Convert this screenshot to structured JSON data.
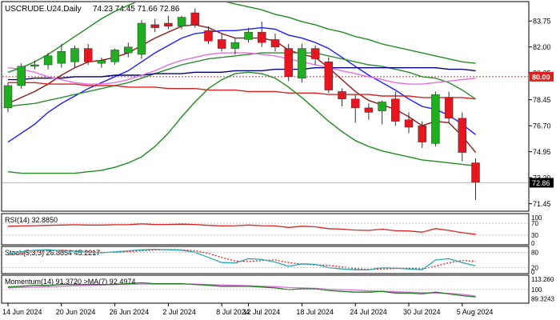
{
  "chart_data": {
    "type": "candlestick",
    "title": "USCRUDE.U24,Daily",
    "ohlc_header": "74.23 74.45 71.66 72.86",
    "last_price": "72.86",
    "level_line": "80.00",
    "price_ticks": [
      "83.75",
      "82.00",
      "80.25",
      "78.45",
      "76.70",
      "74.95",
      "73.20",
      "71.45"
    ],
    "price_range": [
      71.0,
      85.0
    ],
    "date_ticks": [
      "14 Jun 2024",
      "20 Jun 2024",
      "26 Jun 2024",
      "2 Jul 2024",
      "8 Jul 2024",
      "12 Jul 2024",
      "18 Jul 2024",
      "24 Jul 2024",
      "30 Jul 2024",
      "5 Aug 2024"
    ],
    "candles": [
      {
        "o": 77.9,
        "h": 79.6,
        "l": 77.6,
        "c": 79.4
      },
      {
        "o": 79.4,
        "h": 80.9,
        "l": 79.2,
        "c": 80.7
      },
      {
        "o": 80.7,
        "h": 81.1,
        "l": 80.5,
        "c": 80.8
      },
      {
        "o": 80.8,
        "h": 81.6,
        "l": 80.5,
        "c": 81.4
      },
      {
        "o": 80.9,
        "h": 82.2,
        "l": 80.6,
        "c": 81.7
      },
      {
        "o": 81.0,
        "h": 82.1,
        "l": 80.6,
        "c": 81.9
      },
      {
        "o": 81.9,
        "h": 82.2,
        "l": 80.8,
        "c": 81.0
      },
      {
        "o": 80.9,
        "h": 81.3,
        "l": 80.6,
        "c": 81.1
      },
      {
        "o": 81.0,
        "h": 81.9,
        "l": 80.8,
        "c": 81.8
      },
      {
        "o": 81.6,
        "h": 82.3,
        "l": 81.3,
        "c": 82.0
      },
      {
        "o": 81.5,
        "h": 83.8,
        "l": 81.2,
        "c": 83.6
      },
      {
        "o": 83.5,
        "h": 83.9,
        "l": 83.0,
        "c": 83.3
      },
      {
        "o": 83.6,
        "h": 84.1,
        "l": 83.2,
        "c": 83.4
      },
      {
        "o": 83.4,
        "h": 84.1,
        "l": 83.2,
        "c": 84.0
      },
      {
        "o": 84.3,
        "h": 84.6,
        "l": 83.3,
        "c": 83.5
      },
      {
        "o": 83.1,
        "h": 83.4,
        "l": 82.2,
        "c": 82.4
      },
      {
        "o": 82.5,
        "h": 82.9,
        "l": 81.7,
        "c": 81.9
      },
      {
        "o": 81.9,
        "h": 82.6,
        "l": 81.5,
        "c": 82.3
      },
      {
        "o": 82.5,
        "h": 83.3,
        "l": 82.3,
        "c": 83.0
      },
      {
        "o": 83.0,
        "h": 83.7,
        "l": 82.0,
        "c": 82.3
      },
      {
        "o": 82.5,
        "h": 82.9,
        "l": 81.7,
        "c": 82.0
      },
      {
        "o": 81.9,
        "h": 82.2,
        "l": 79.7,
        "c": 80.0
      },
      {
        "o": 79.9,
        "h": 82.2,
        "l": 79.6,
        "c": 81.9
      },
      {
        "o": 81.9,
        "h": 82.1,
        "l": 80.8,
        "c": 81.2
      },
      {
        "o": 81.0,
        "h": 81.3,
        "l": 78.9,
        "c": 79.1
      },
      {
        "o": 79.0,
        "h": 79.2,
        "l": 78.0,
        "c": 78.5
      },
      {
        "o": 78.5,
        "h": 78.8,
        "l": 76.9,
        "c": 77.9
      },
      {
        "o": 77.9,
        "h": 78.2,
        "l": 77.1,
        "c": 77.6
      },
      {
        "o": 77.7,
        "h": 78.4,
        "l": 76.8,
        "c": 78.3
      },
      {
        "o": 78.5,
        "h": 79.0,
        "l": 76.7,
        "c": 77.0
      },
      {
        "o": 77.1,
        "h": 77.6,
        "l": 76.2,
        "c": 76.6
      },
      {
        "o": 76.7,
        "h": 77.0,
        "l": 75.2,
        "c": 75.6
      },
      {
        "o": 75.5,
        "h": 79.0,
        "l": 75.3,
        "c": 78.8
      },
      {
        "o": 78.6,
        "h": 79.0,
        "l": 76.9,
        "c": 77.2
      },
      {
        "o": 77.2,
        "h": 77.6,
        "l": 74.3,
        "c": 74.9
      },
      {
        "o": 74.2,
        "h": 74.5,
        "l": 71.7,
        "c": 72.9
      }
    ],
    "overlays": [
      {
        "color": "#1a1aff",
        "values": [
          75.6,
          76.2,
          76.8,
          77.6,
          78.2,
          78.7,
          79.2,
          79.6,
          80.0,
          80.4,
          81.0,
          81.6,
          82.1,
          82.6,
          82.9,
          83.0,
          83.1,
          83.1,
          83.2,
          83.3,
          83.2,
          82.8,
          82.6,
          82.3,
          81.9,
          81.3,
          80.7,
          80.1,
          79.6,
          79.1,
          78.5,
          78.0,
          77.8,
          77.4,
          76.8,
          76.1
        ]
      },
      {
        "color": "#8b1a1a",
        "values": [
          78.2,
          78.6,
          79.0,
          79.5,
          80.1,
          80.6,
          81.0,
          81.1,
          81.3,
          81.6,
          82.1,
          82.6,
          83.0,
          83.4,
          83.5,
          83.3,
          82.9,
          82.6,
          82.6,
          82.6,
          82.4,
          81.8,
          81.5,
          81.3,
          80.6,
          79.8,
          79.0,
          78.4,
          78.1,
          77.8,
          77.3,
          76.7,
          77.0,
          76.9,
          76.0,
          74.9
        ]
      },
      {
        "color": "#2e8b2e",
        "values": [
          78.0,
          78.1,
          78.2,
          78.4,
          78.6,
          78.8,
          79.0,
          79.2,
          79.4,
          79.6,
          79.9,
          80.2,
          80.5,
          80.8,
          81.0,
          81.2,
          81.3,
          81.4,
          81.5,
          81.6,
          81.6,
          81.6,
          81.6,
          81.6,
          81.4,
          81.2,
          81.0,
          80.8,
          80.7,
          80.5,
          80.3,
          80.0,
          79.9,
          79.6,
          79.1,
          78.5
        ]
      },
      {
        "color": "#dc2020",
        "values": [
          79.6,
          79.6,
          79.6,
          79.5,
          79.5,
          79.5,
          79.4,
          79.4,
          79.4,
          79.3,
          79.3,
          79.3,
          79.2,
          79.2,
          79.2,
          79.1,
          79.1,
          79.1,
          79.0,
          79.0,
          79.0,
          78.9,
          78.9,
          78.9,
          78.8,
          78.8,
          78.8,
          78.8,
          78.7,
          78.7,
          78.7,
          78.6,
          78.6,
          78.6,
          78.6,
          78.5
        ]
      },
      {
        "color": "#000080",
        "values": [
          79.8,
          79.8,
          79.9,
          79.9,
          79.9,
          80.0,
          80.0,
          80.0,
          80.1,
          80.1,
          80.1,
          80.2,
          80.2,
          80.2,
          80.3,
          80.3,
          80.3,
          80.4,
          80.4,
          80.4,
          80.5,
          80.5,
          80.5,
          80.6,
          80.6,
          80.6,
          80.6,
          80.6,
          80.6,
          80.6,
          80.6,
          80.6,
          80.6,
          80.5,
          80.5,
          80.4
        ]
      },
      {
        "color": "#e070e0",
        "values": [
          80.6,
          80.5,
          80.3,
          80.0,
          79.8,
          79.6,
          79.5,
          79.5,
          79.6,
          79.8,
          80.1,
          80.4,
          80.8,
          81.1,
          81.3,
          81.5,
          81.6,
          81.6,
          81.6,
          81.5,
          81.4,
          81.2,
          81.0,
          80.8,
          80.6,
          80.4,
          80.2,
          80.0,
          79.8,
          79.6,
          79.5,
          79.5,
          79.6,
          79.7,
          79.8,
          79.9
        ]
      },
      {
        "color": "#228b22",
        "values": [
          80.3,
          80.6,
          81.0,
          81.5,
          82.1,
          82.7,
          83.3,
          83.9,
          84.4,
          84.8,
          85.2,
          85.4,
          85.5,
          85.5,
          85.4,
          85.3,
          85.1,
          84.9,
          84.7,
          84.5,
          84.2,
          84.0,
          83.7,
          83.5,
          83.2,
          83.0,
          82.7,
          82.5,
          82.2,
          82.0,
          81.8,
          81.6,
          81.4,
          81.2,
          81.0,
          80.9
        ]
      },
      {
        "color": "#228b22",
        "values": [
          73.6,
          73.5,
          73.5,
          73.5,
          73.5,
          73.5,
          73.6,
          73.7,
          73.9,
          74.2,
          74.6,
          75.3,
          76.2,
          77.3,
          78.3,
          79.2,
          79.8,
          80.2,
          80.3,
          80.2,
          79.9,
          79.3,
          78.6,
          77.8,
          77.0,
          76.3,
          75.7,
          75.3,
          75.0,
          74.8,
          74.6,
          74.4,
          74.3,
          74.2,
          74.1,
          74.0
        ]
      }
    ],
    "rsi": {
      "label": "RSI(14) 32.8850",
      "ticks": [
        "100",
        "70",
        "30",
        "0"
      ],
      "range": [
        0,
        100
      ],
      "color": "#dc2020",
      "values": [
        60,
        61,
        62,
        63,
        64,
        65,
        64,
        64,
        65,
        65,
        68,
        66,
        66,
        67,
        66,
        63,
        61,
        62,
        64,
        62,
        61,
        56,
        60,
        58,
        52,
        50,
        47,
        46,
        50,
        45,
        44,
        40,
        52,
        46,
        38,
        33
      ]
    },
    "stoch": {
      "label": "Stoch(5,3,3) 26.8854 45.2217",
      "ticks": [
        "80",
        "20",
        "0"
      ],
      "range": [
        0,
        100
      ],
      "k_color": "#2ba6b0",
      "d_color": "#dc2020",
      "k": [
        75,
        82,
        88,
        90,
        86,
        84,
        80,
        78,
        82,
        86,
        90,
        92,
        90,
        88,
        80,
        60,
        40,
        38,
        55,
        52,
        42,
        25,
        35,
        33,
        20,
        15,
        12,
        12,
        20,
        18,
        15,
        12,
        50,
        55,
        40,
        27
      ],
      "d": [
        70,
        75,
        82,
        86,
        88,
        86,
        83,
        80,
        80,
        82,
        86,
        89,
        91,
        90,
        86,
        76,
        60,
        46,
        44,
        48,
        50,
        40,
        34,
        31,
        29,
        23,
        16,
        13,
        15,
        17,
        18,
        15,
        26,
        39,
        48,
        45
      ]
    },
    "momentum": {
      "label": "Momentum(14) 91.3720 >MA(7) 92.4974",
      "ticks": [
        "113.260",
        "100",
        "89.3243"
      ],
      "range": [
        85,
        116
      ],
      "mom_color": "#1e7b1e",
      "ma_color": "#e070e0",
      "mom": [
        103,
        104,
        105,
        105,
        106,
        106,
        106,
        106,
        106,
        107,
        108,
        107,
        107,
        107,
        106,
        105,
        104,
        104,
        104,
        103,
        102,
        100,
        101,
        101,
        99,
        98,
        97,
        97,
        98,
        96,
        96,
        95,
        97,
        95,
        93,
        91.4
      ],
      "ma": [
        102,
        102.5,
        103,
        103.5,
        104,
        104.5,
        105,
        105.5,
        106,
        106,
        106.5,
        106.5,
        106.5,
        106.5,
        106.5,
        106,
        105.5,
        105,
        104.5,
        104,
        103.5,
        102.5,
        102,
        101.5,
        100.5,
        100,
        99.5,
        98.5,
        98,
        97.5,
        97,
        96.5,
        96,
        95.5,
        94.5,
        92.5
      ]
    }
  }
}
